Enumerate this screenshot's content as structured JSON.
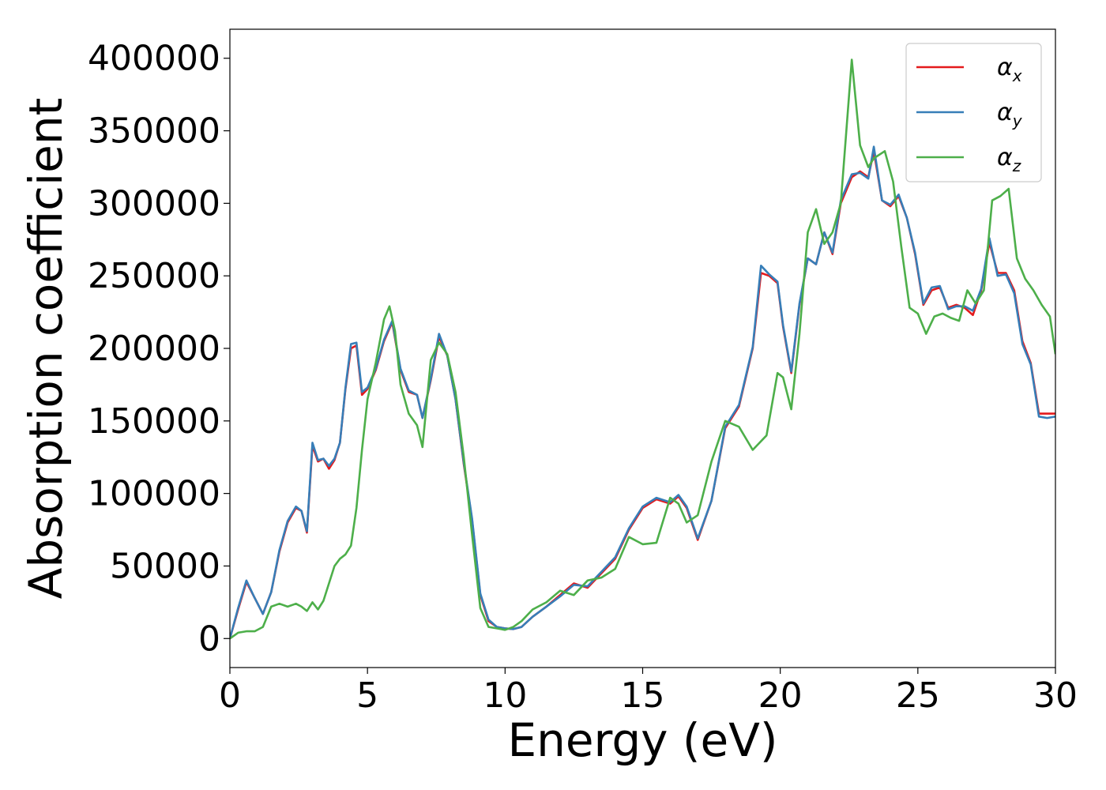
{
  "chart_data": {
    "type": "line",
    "xlabel": "Energy (eV)",
    "ylabel": "Absorption coefficient",
    "xlim": [
      0,
      30
    ],
    "ylim": [
      -20000,
      420000
    ],
    "xticks": [
      "0",
      "5",
      "10",
      "15",
      "20",
      "25",
      "30"
    ],
    "yticks": [
      "0",
      "50000",
      "100000",
      "150000",
      "200000",
      "250000",
      "300000",
      "350000",
      "400000"
    ],
    "grid": false,
    "legend_position": "top-right",
    "series": [
      {
        "name": "α_x",
        "label_main": "α",
        "label_sub": "x",
        "color": "#e41a1c",
        "x": [
          0,
          0.3,
          0.6,
          0.9,
          1.2,
          1.5,
          1.8,
          2.1,
          2.4,
          2.6,
          2.8,
          3.0,
          3.2,
          3.4,
          3.6,
          3.8,
          4.0,
          4.2,
          4.4,
          4.6,
          4.8,
          5.0,
          5.3,
          5.6,
          5.9,
          6.2,
          6.5,
          6.8,
          7.0,
          7.3,
          7.6,
          7.9,
          8.2,
          8.5,
          8.8,
          9.1,
          9.4,
          9.7,
          10.0,
          10.3,
          10.6,
          11.0,
          11.5,
          12.0,
          12.5,
          13.0,
          13.5,
          14.0,
          14.5,
          15.0,
          15.5,
          16.0,
          16.3,
          16.6,
          17.0,
          17.5,
          18.0,
          18.5,
          19.0,
          19.3,
          19.6,
          19.9,
          20.1,
          20.4,
          20.7,
          21.0,
          21.3,
          21.6,
          21.9,
          22.2,
          22.6,
          22.9,
          23.2,
          23.4,
          23.7,
          24.0,
          24.3,
          24.6,
          24.9,
          25.2,
          25.5,
          25.8,
          26.1,
          26.4,
          26.7,
          27.0,
          27.3,
          27.6,
          27.9,
          28.2,
          28.5,
          28.8,
          29.1,
          29.4,
          29.7,
          30.0
        ],
        "y": [
          0,
          20000,
          39000,
          28000,
          17000,
          32000,
          60000,
          80000,
          90000,
          88000,
          73000,
          133000,
          122000,
          124000,
          117000,
          123000,
          135000,
          172000,
          200000,
          202000,
          168000,
          172000,
          185000,
          205000,
          218000,
          185000,
          170000,
          168000,
          152000,
          178000,
          208000,
          195000,
          165000,
          120000,
          82000,
          30000,
          12000,
          8000,
          7000,
          6500,
          8000,
          15000,
          22000,
          30000,
          38000,
          35000,
          45000,
          55000,
          75000,
          90000,
          96000,
          93000,
          98000,
          90000,
          68000,
          95000,
          145000,
          160000,
          200000,
          252000,
          250000,
          245000,
          215000,
          183000,
          230000,
          262000,
          258000,
          280000,
          265000,
          300000,
          318000,
          322000,
          318000,
          336000,
          302000,
          298000,
          305000,
          290000,
          265000,
          230000,
          240000,
          242000,
          228000,
          230000,
          228000,
          223000,
          240000,
          273000,
          252000,
          252000,
          240000,
          205000,
          190000,
          155000,
          155000,
          155000
        ]
      },
      {
        "name": "α_y",
        "label_main": "α",
        "label_sub": "y",
        "color": "#377eb8",
        "x": [
          0,
          0.3,
          0.6,
          0.9,
          1.2,
          1.5,
          1.8,
          2.1,
          2.4,
          2.6,
          2.8,
          3.0,
          3.2,
          3.4,
          3.6,
          3.8,
          4.0,
          4.2,
          4.4,
          4.6,
          4.8,
          5.0,
          5.3,
          5.6,
          5.9,
          6.2,
          6.5,
          6.8,
          7.0,
          7.3,
          7.6,
          7.9,
          8.2,
          8.5,
          8.8,
          9.1,
          9.4,
          9.7,
          10.0,
          10.3,
          10.6,
          11.0,
          11.5,
          12.0,
          12.5,
          13.0,
          13.5,
          14.0,
          14.5,
          15.0,
          15.5,
          16.0,
          16.3,
          16.6,
          17.0,
          17.5,
          18.0,
          18.5,
          19.0,
          19.3,
          19.6,
          19.9,
          20.1,
          20.4,
          20.7,
          21.0,
          21.3,
          21.6,
          21.9,
          22.2,
          22.6,
          22.9,
          23.2,
          23.4,
          23.7,
          24.0,
          24.3,
          24.6,
          24.9,
          25.2,
          25.5,
          25.8,
          26.1,
          26.4,
          26.7,
          27.0,
          27.3,
          27.6,
          27.9,
          28.2,
          28.5,
          28.8,
          29.1,
          29.4,
          29.7,
          30.0
        ],
        "y": [
          0,
          21000,
          40000,
          28000,
          17000,
          32000,
          61000,
          81000,
          91000,
          88000,
          74000,
          135000,
          123000,
          124000,
          119000,
          124000,
          135000,
          173000,
          203000,
          204000,
          170000,
          173000,
          186000,
          206000,
          219000,
          186000,
          171000,
          168000,
          152000,
          179000,
          210000,
          195000,
          165000,
          121000,
          83000,
          31000,
          13000,
          8000,
          7000,
          6500,
          8000,
          15000,
          22000,
          29000,
          37000,
          36000,
          46000,
          56000,
          76000,
          91000,
          97000,
          94000,
          99000,
          91000,
          69000,
          95000,
          146000,
          161000,
          201000,
          257000,
          251000,
          246000,
          216000,
          184000,
          231000,
          262000,
          258000,
          280000,
          266000,
          302000,
          320000,
          321000,
          317000,
          339000,
          302000,
          299000,
          306000,
          290000,
          266000,
          231000,
          242000,
          243000,
          227000,
          229000,
          229000,
          226000,
          241000,
          276000,
          250000,
          251000,
          238000,
          203000,
          189000,
          153000,
          152000,
          153000
        ]
      },
      {
        "name": "α_z",
        "label_main": "α",
        "label_sub": "z",
        "color": "#4daf4a",
        "x": [
          0,
          0.3,
          0.6,
          0.9,
          1.2,
          1.5,
          1.8,
          2.1,
          2.4,
          2.6,
          2.8,
          3.0,
          3.2,
          3.4,
          3.6,
          3.8,
          4.0,
          4.2,
          4.4,
          4.6,
          4.8,
          5.0,
          5.3,
          5.6,
          5.8,
          6.0,
          6.2,
          6.5,
          6.8,
          7.0,
          7.3,
          7.6,
          7.9,
          8.2,
          8.5,
          8.8,
          9.1,
          9.4,
          9.7,
          10.0,
          10.3,
          10.6,
          11.0,
          11.5,
          12.0,
          12.5,
          13.0,
          13.5,
          14.0,
          14.5,
          15.0,
          15.5,
          16.0,
          16.3,
          16.6,
          17.0,
          17.5,
          18.0,
          18.5,
          19.0,
          19.5,
          19.9,
          20.1,
          20.4,
          20.7,
          21.0,
          21.3,
          21.6,
          21.9,
          22.2,
          22.6,
          22.9,
          23.2,
          23.4,
          23.8,
          24.1,
          24.4,
          24.7,
          25.0,
          25.3,
          25.6,
          25.9,
          26.2,
          26.5,
          26.8,
          27.1,
          27.4,
          27.7,
          28.0,
          28.3,
          28.6,
          28.9,
          29.2,
          29.5,
          29.8,
          30.0
        ],
        "y": [
          0,
          4000,
          5000,
          5000,
          8000,
          22000,
          24000,
          22000,
          24000,
          22000,
          19000,
          25000,
          20000,
          26000,
          38000,
          50000,
          55000,
          58000,
          64000,
          90000,
          130000,
          165000,
          190000,
          220000,
          229000,
          212000,
          175000,
          155000,
          147000,
          132000,
          192000,
          204000,
          196000,
          170000,
          125000,
          72000,
          21000,
          8000,
          7000,
          6000,
          8000,
          12000,
          20000,
          25000,
          33000,
          30000,
          40000,
          42000,
          48000,
          70000,
          65000,
          66000,
          97000,
          93000,
          80000,
          85000,
          122000,
          150000,
          146000,
          130000,
          140000,
          183000,
          180000,
          158000,
          210000,
          280000,
          296000,
          272000,
          280000,
          300000,
          399000,
          340000,
          325000,
          331000,
          336000,
          315000,
          270000,
          228000,
          224000,
          210000,
          222000,
          224000,
          221000,
          219000,
          240000,
          231000,
          240000,
          302000,
          305000,
          310000,
          262000,
          248000,
          240000,
          230000,
          222000,
          196000
        ]
      }
    ]
  }
}
